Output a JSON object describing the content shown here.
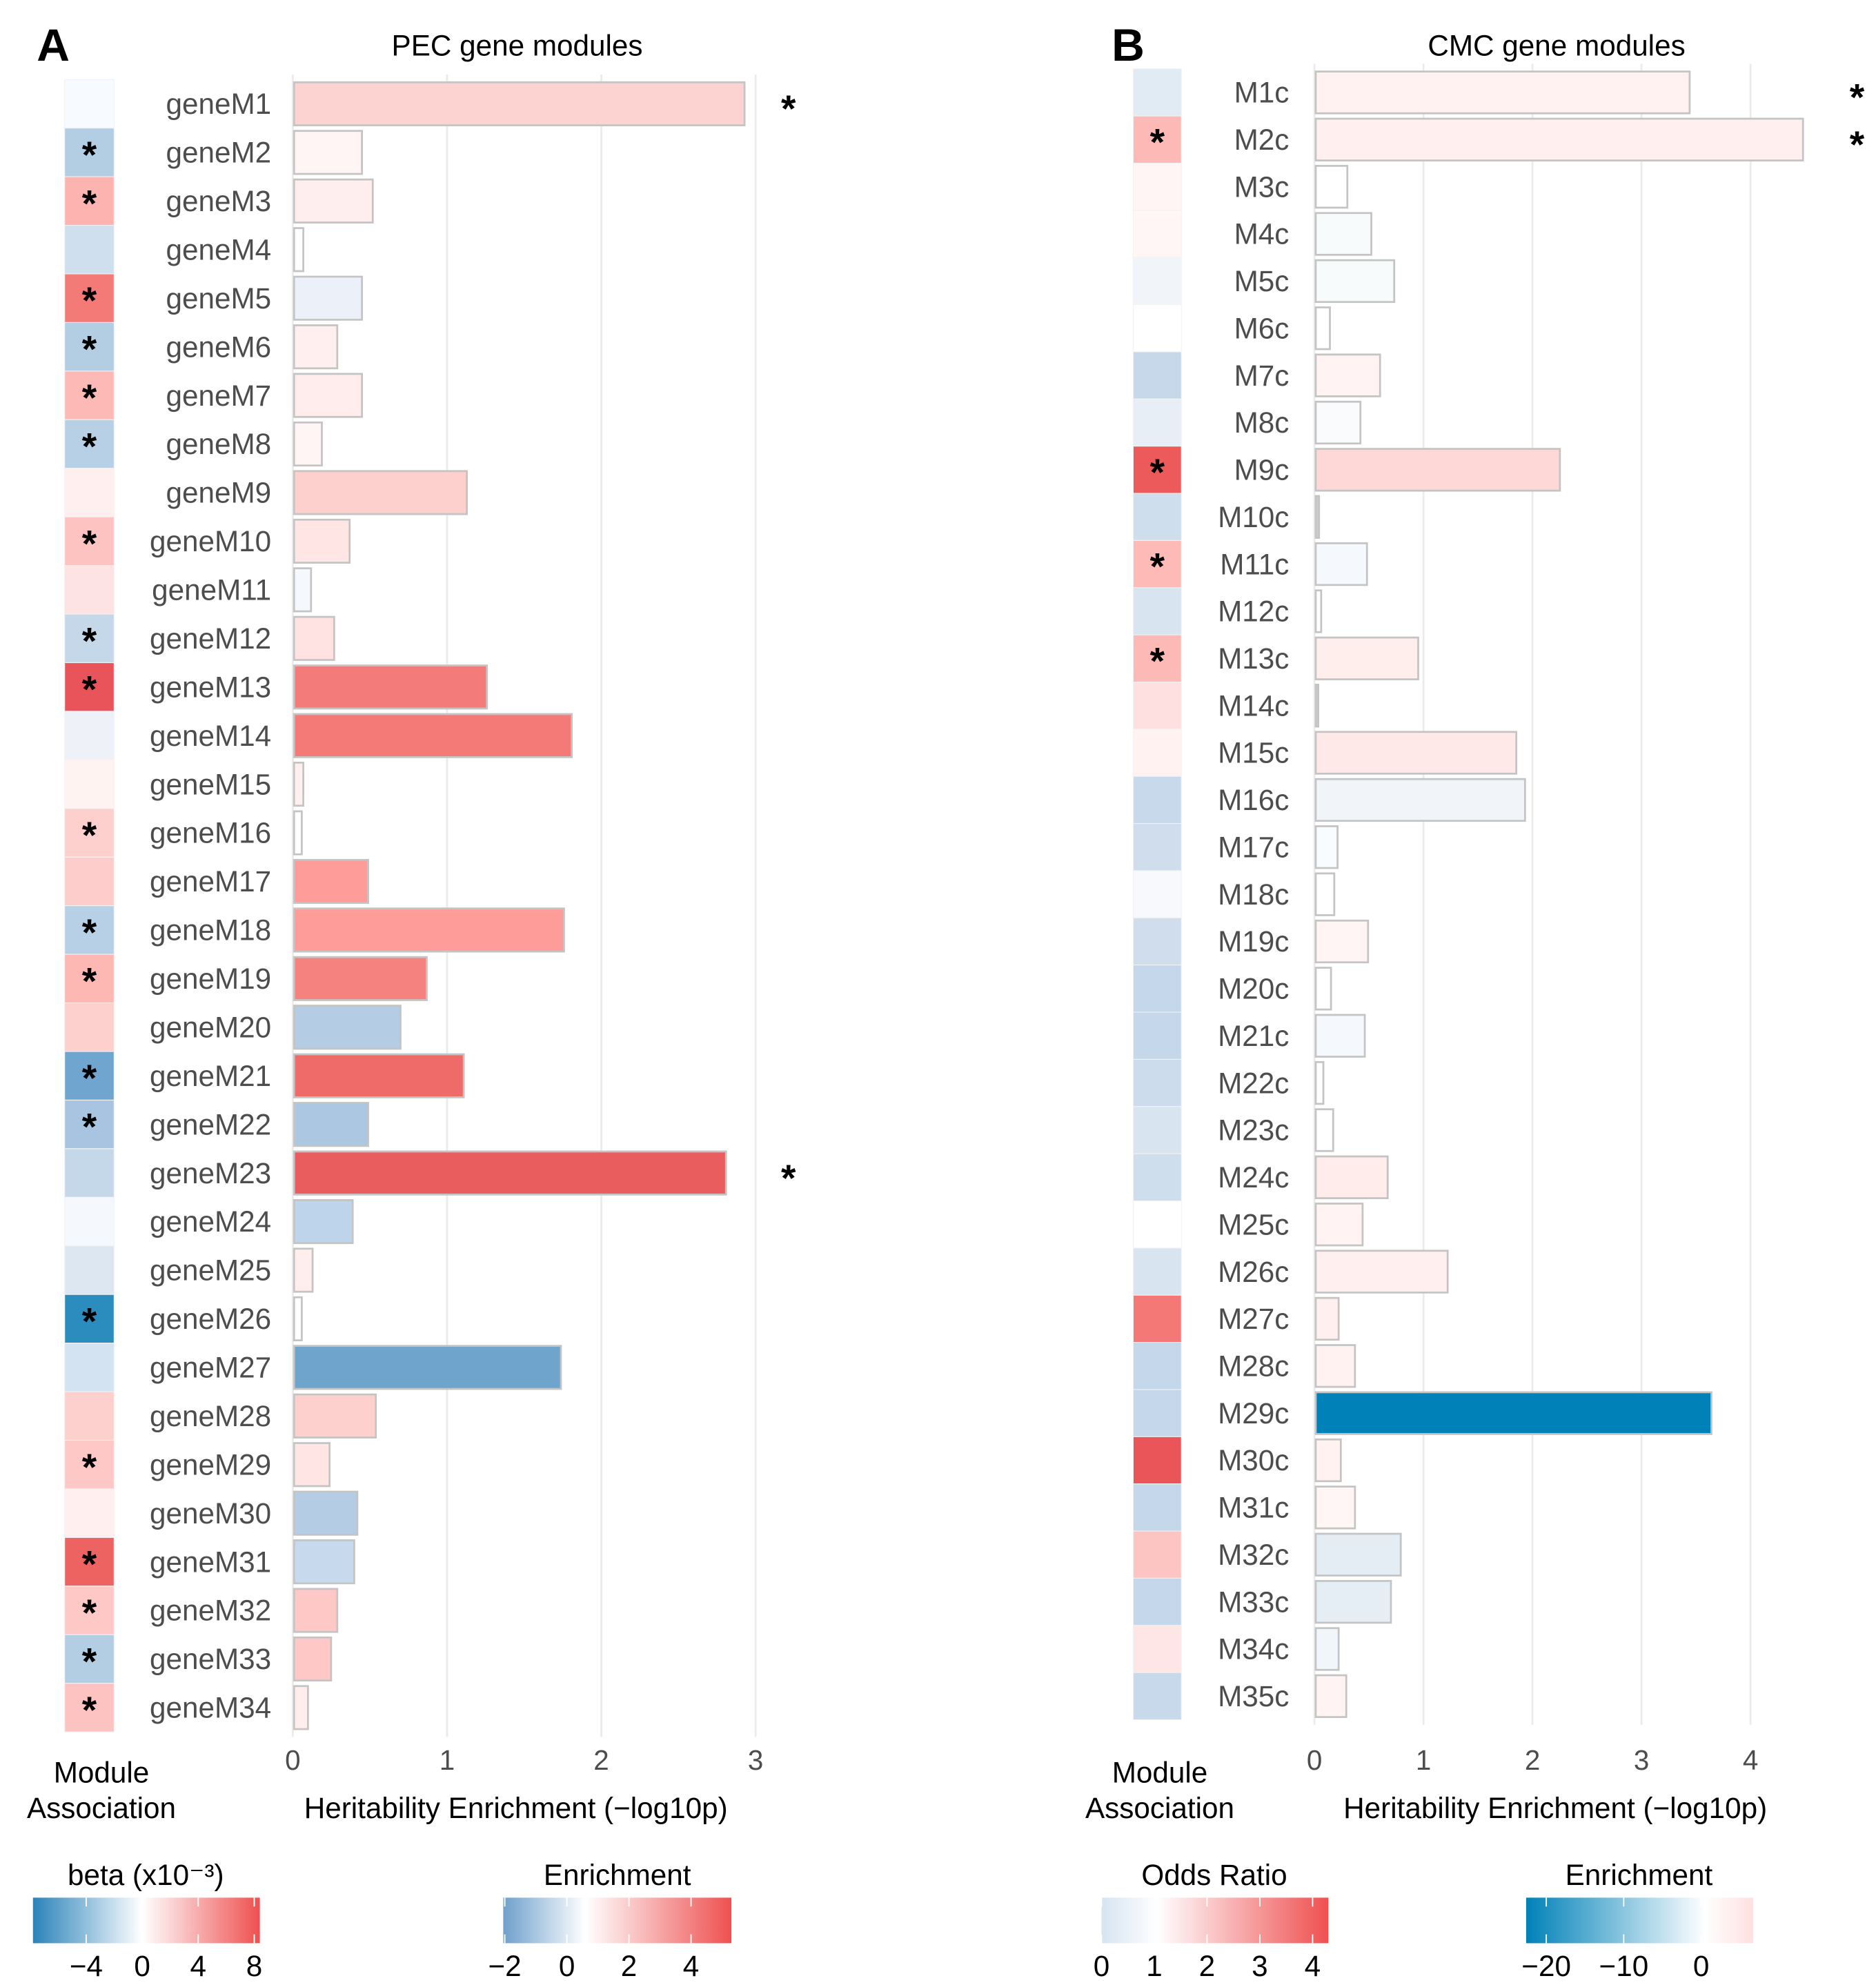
{
  "chart_data": [
    {
      "type": "bar",
      "panel_label": "A",
      "title": "PEC gene modules",
      "xlabel": "Heritability Enrichment (−log10p)",
      "heatmap_label": [
        "Module",
        "Association"
      ],
      "xlim": [
        0,
        3.2
      ],
      "xticks": [
        0,
        1,
        2,
        3
      ],
      "grid": true,
      "categories": [
        "geneM1",
        "geneM2",
        "geneM3",
        "geneM4",
        "geneM5",
        "geneM6",
        "geneM7",
        "geneM8",
        "geneM9",
        "geneM10",
        "geneM11",
        "geneM12",
        "geneM13",
        "geneM14",
        "geneM15",
        "geneM16",
        "geneM17",
        "geneM18",
        "geneM19",
        "geneM20",
        "geneM21",
        "geneM22",
        "geneM23",
        "geneM24",
        "geneM25",
        "geneM26",
        "geneM27",
        "geneM28",
        "geneM29",
        "geneM30",
        "geneM31",
        "geneM32",
        "geneM33",
        "geneM34"
      ],
      "values": [
        2.92,
        0.44,
        0.51,
        0.06,
        0.44,
        0.28,
        0.44,
        0.18,
        1.12,
        0.36,
        0.11,
        0.26,
        1.25,
        1.8,
        0.06,
        0.05,
        0.48,
        1.75,
        0.86,
        0.69,
        1.1,
        0.48,
        2.8,
        0.38,
        0.12,
        0.05,
        1.73,
        0.53,
        0.23,
        0.41,
        0.39,
        0.28,
        0.24,
        0.09
      ],
      "bar_colors": [
        "#fdd3d1",
        "#fff5f4",
        "#ffeeed",
        "#ffffff",
        "#ecf1f9",
        "#ffefee",
        "#ffecec",
        "#fff5f4",
        "#fdcfcd",
        "#ffe5e4",
        "#f5f8fc",
        "#ffe2e1",
        "#f37b7a",
        "#f47a78",
        "#ffefee",
        "#ffffff",
        "#fd9c99",
        "#fd9c99",
        "#f5827f",
        "#b5cde4",
        "#ef6b69",
        "#abc7e1",
        "#e95d5f",
        "#bed4ea",
        "#ffeeed",
        "#ffffff",
        "#6fa5cd",
        "#fdcfcd",
        "#ffe5e4",
        "#b5cde4",
        "#c7d9ec",
        "#fdc8c6",
        "#fdc8c6",
        "#ffeeed"
      ],
      "enrichment_significant": [
        "geneM1",
        "geneM23"
      ],
      "heatmap_colors": [
        "#f7fbff",
        "#b3cde3",
        "#fdb4b0",
        "#d0dfee",
        "#f47a78",
        "#b3cde3",
        "#fdb9b5",
        "#b8d0e6",
        "#fff0ef",
        "#fdc3c0",
        "#fde3e3",
        "#c5d8ea",
        "#e8545a",
        "#eef2f8",
        "#fff3f2",
        "#fdcfcd",
        "#fdcdcb",
        "#b8d0e6",
        "#fdb8b4",
        "#fdd0ce",
        "#6fa5cf",
        "#a8c4e0",
        "#c5d8ea",
        "#f5f8fc",
        "#dde7f2",
        "#2b8cbe",
        "#d4e3f1",
        "#fdd0ce",
        "#fdc8c6",
        "#fff0ef",
        "#ec6362",
        "#fdc8c6",
        "#b3cde3",
        "#fdc3c0"
      ],
      "association_significant": [
        "geneM2",
        "geneM3",
        "geneM5",
        "geneM6",
        "geneM7",
        "geneM8",
        "geneM10",
        "geneM12",
        "geneM13",
        "geneM16",
        "geneM18",
        "geneM19",
        "geneM21",
        "geneM22",
        "geneM26",
        "geneM29",
        "geneM31",
        "geneM32",
        "geneM33",
        "geneM34"
      ],
      "legends": [
        {
          "title": "beta (x10⁻³)",
          "domain": [
            -7.8,
            8.4
          ],
          "ticks": [
            -4,
            0,
            4,
            8
          ],
          "tick_labels": [
            "−4",
            "0",
            "4",
            "8"
          ],
          "colors": [
            "#2b83ba",
            "#ffffff",
            "#ef5050"
          ],
          "stops": [
            -7.8,
            0,
            8.4
          ]
        },
        {
          "title": "Enrichment",
          "domain": [
            -2.05,
            5.3
          ],
          "ticks": [
            -2,
            0,
            2,
            4
          ],
          "tick_labels": [
            "−2",
            "0",
            "2",
            "4"
          ],
          "colors": [
            "#6fa0cc",
            "#ffffff",
            "#ef5050"
          ],
          "stops": [
            -2.05,
            0.6,
            5.3
          ]
        }
      ]
    },
    {
      "type": "bar",
      "panel_label": "B",
      "title": "CMC gene modules",
      "xlabel": "Heritability Enrichment (−log10p)",
      "heatmap_label": [
        "Module",
        "Association"
      ],
      "xlim": [
        0,
        4.5
      ],
      "xticks": [
        0,
        1,
        2,
        3,
        4
      ],
      "grid": true,
      "categories": [
        "M1c",
        "M2c",
        "M3c",
        "M4c",
        "M5c",
        "M6c",
        "M7c",
        "M8c",
        "M9c",
        "M10c",
        "M11c",
        "M12c",
        "M13c",
        "M14c",
        "M15c",
        "M16c",
        "M17c",
        "M18c",
        "M19c",
        "M20c",
        "M21c",
        "M22c",
        "M23c",
        "M24c",
        "M25c",
        "M26c",
        "M27c",
        "M28c",
        "M29c",
        "M30c",
        "M31c",
        "M32c",
        "M33c",
        "M34c",
        "M35c"
      ],
      "values": [
        3.43,
        4.47,
        0.29,
        0.51,
        0.72,
        0.13,
        0.59,
        0.41,
        2.24,
        0.03,
        0.47,
        0.05,
        0.94,
        0.02,
        1.84,
        1.92,
        0.2,
        0.17,
        0.48,
        0.14,
        0.45,
        0.07,
        0.16,
        0.66,
        0.43,
        1.21,
        0.21,
        0.36,
        3.63,
        0.23,
        0.36,
        0.78,
        0.69,
        0.21,
        0.28
      ],
      "bar_colors": [
        "#fff2f1",
        "#fff0ef",
        "#ffffff",
        "#f8fbfc",
        "#f8fbfc",
        "#ffffff",
        "#fff4f3",
        "#fafbfd",
        "#fdd8d6",
        "#cccccc",
        "#f5f9fd",
        "#ffffff",
        "#ffeeec",
        "#cccccc",
        "#ffe9e8",
        "#f1f4f9",
        "#f8fcfe",
        "#ffffff",
        "#fff5f4",
        "#ffffff",
        "#f5f9fd",
        "#ffffff",
        "#ffffff",
        "#ffeceb",
        "#fff4f3",
        "#fff0ef",
        "#fff0ef",
        "#fff2f1",
        "#0081b8",
        "#fff2f1",
        "#fff6f5",
        "#e4ecf4",
        "#e4eef4",
        "#f1f6fb",
        "#fff4f3"
      ],
      "enrichment_significant": [
        "M1c",
        "M2c"
      ],
      "heatmap_colors": [
        "#e1ebf4",
        "#fdb9b5",
        "#fff5f4",
        "#fff6f5",
        "#f1f4f9",
        "#ffffff",
        "#c7d8ea",
        "#e7eef6",
        "#ec5a5b",
        "#cfdeec",
        "#fdbab6",
        "#d8e4f0",
        "#fdb9b5",
        "#fde0df",
        "#fff2f1",
        "#c8d9eb",
        "#cfdded",
        "#f7f9fc",
        "#cfdded",
        "#c5d7ea",
        "#c5d7ea",
        "#cddcec",
        "#d8e4f0",
        "#cfdeed",
        "#ffffff",
        "#d8e4f0",
        "#f37876",
        "#c5d7ea",
        "#c5d7ea",
        "#e95558",
        "#c5d7ea",
        "#fdc5c2",
        "#c5d7ea",
        "#fde6e5",
        "#c8d9eb"
      ],
      "association_significant": [
        "M2c",
        "M9c",
        "M11c",
        "M13c"
      ],
      "legends": [
        {
          "title": "Odds Ratio",
          "domain": [
            0,
            4.3
          ],
          "ticks": [
            0,
            1,
            2,
            3,
            4
          ],
          "tick_labels": [
            "0",
            "1",
            "2",
            "3",
            "4"
          ],
          "colors": [
            "#d6e4f1",
            "#ffffff",
            "#ef5050"
          ],
          "stops": [
            0,
            1.05,
            4.3
          ]
        },
        {
          "title": "Enrichment",
          "domain": [
            -22.6,
            6.7
          ],
          "ticks": [
            -20,
            -10,
            0
          ],
          "tick_labels": [
            "−20",
            "−10",
            "0"
          ],
          "colors": [
            "#0081b8",
            "#ffffff",
            "#fde0df"
          ],
          "stops": [
            -22.6,
            0.5,
            6.7
          ]
        }
      ]
    }
  ]
}
